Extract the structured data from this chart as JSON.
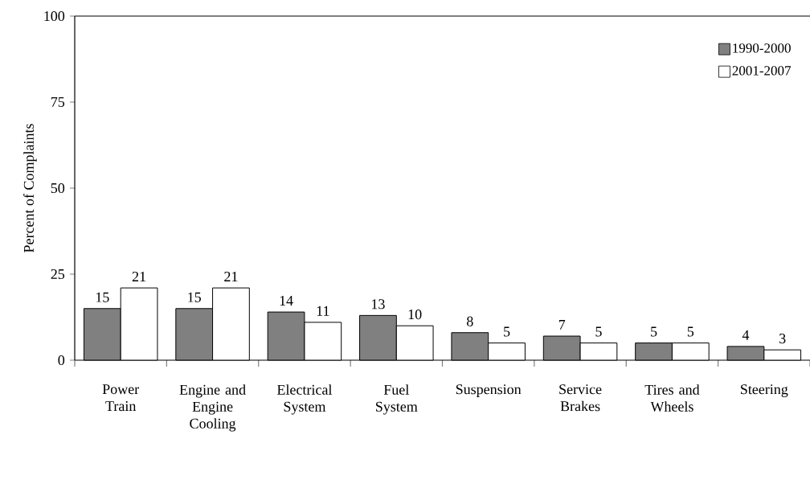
{
  "chart_data": {
    "type": "bar",
    "ylabel": "Percent of Complaints",
    "categories": [
      "Power Train",
      "Engine and Engine Cooling",
      "Electrical System",
      "Fuel System",
      "Suspension",
      "Service Brakes",
      "Tires and Wheels",
      "Steering"
    ],
    "series": [
      {
        "name": "1990-2000",
        "color": "#808080",
        "values": [
          15,
          15,
          14,
          13,
          8,
          7,
          5,
          4
        ]
      },
      {
        "name": "2001-2007",
        "color": "#ffffff",
        "values": [
          21,
          21,
          11,
          10,
          5,
          5,
          5,
          3
        ]
      }
    ],
    "ylim": [
      0,
      100
    ],
    "yticks": [
      0,
      25,
      50,
      75,
      100
    ],
    "data_labels": true,
    "legend": "top right",
    "grid": false
  }
}
